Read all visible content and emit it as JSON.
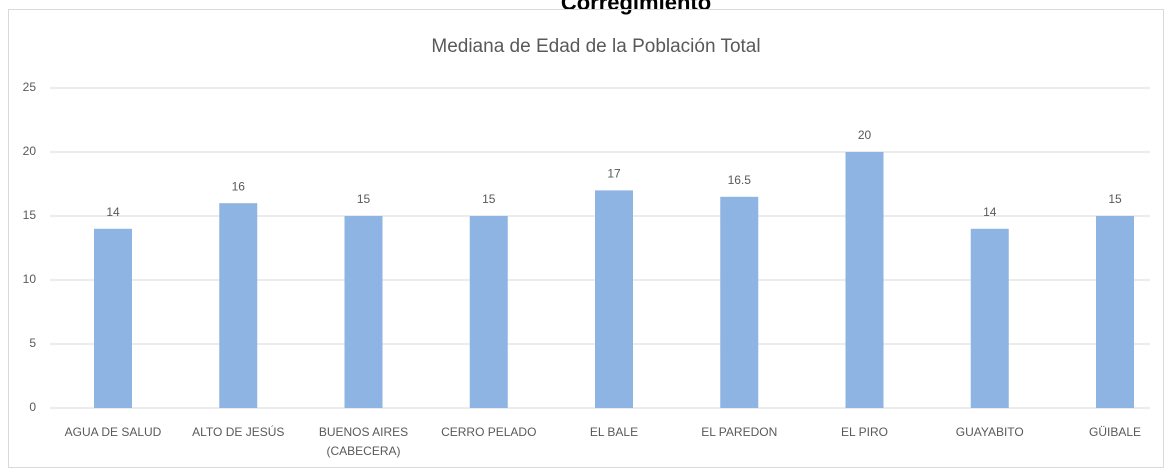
{
  "header": {
    "title": "Corregimiento"
  },
  "chart_data": {
    "type": "bar",
    "title": "Mediana de Edad de la Población Total",
    "categories": [
      "AGUA DE SALUD",
      "ALTO DE JESÚS",
      "BUENOS AIRES\n(CABECERA)",
      "CERRO PELADO",
      "EL BALE",
      "EL PAREDON",
      "EL PIRO",
      "GUAYABITO",
      "GÜIBALE"
    ],
    "values": [
      14,
      16,
      15,
      15,
      17,
      16.5,
      20,
      14,
      15
    ],
    "color": "#8eb4e3",
    "ylim": [
      0,
      25
    ],
    "yticks": [
      0,
      5,
      10,
      15,
      20,
      25
    ],
    "grid": true
  }
}
